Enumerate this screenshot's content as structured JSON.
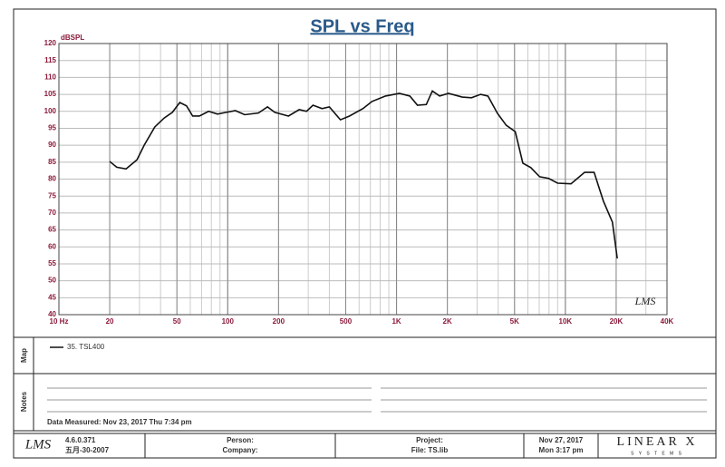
{
  "chart_data": {
    "type": "line",
    "title": "SPL vs Freq",
    "y_label": "dBSPL",
    "watermark": "LMS",
    "x": [
      20,
      22,
      25,
      29,
      32,
      37,
      42,
      47,
      52,
      57,
      62,
      68,
      77,
      87,
      98,
      111,
      126,
      152,
      172,
      190,
      229,
      265,
      293,
      320,
      362,
      400,
      465,
      526,
      633,
      715,
      860,
      1040,
      1200,
      1330,
      1500,
      1630,
      1800,
      2030,
      2450,
      2780,
      3150,
      3480,
      3960,
      4460,
      5050,
      5600,
      6240,
      7040,
      7970,
      9000,
      10800,
      13000,
      14800,
      16800,
      19000,
      20300
    ],
    "series": [
      {
        "name": "35. TSL400",
        "color": "#111111",
        "values": [
          85.2,
          83.5,
          83,
          85.7,
          90,
          95.4,
          98,
          99.7,
          102.6,
          101.6,
          98.6,
          98.6,
          100,
          99.2,
          99.7,
          100.2,
          99,
          99.5,
          101.3,
          99.7,
          98.6,
          100.5,
          100,
          101.8,
          100.8,
          101.3,
          97.5,
          98.6,
          100.8,
          102.9,
          104.5,
          105.3,
          104.5,
          101.8,
          102,
          106,
          104.5,
          105.3,
          104.2,
          104,
          105,
          104.5,
          99.4,
          95.9,
          94,
          84.7,
          83.4,
          80.7,
          80.2,
          78.8,
          78.6,
          82,
          82,
          73.5,
          67.3,
          56.6
        ]
      }
    ],
    "xscale": "log",
    "xlim": [
      10,
      40000
    ],
    "ylim": [
      40,
      120
    ],
    "grid": true,
    "xticks": [
      {
        "value": 10,
        "label": "10 Hz"
      },
      20,
      50,
      100,
      200,
      500,
      {
        "value": 1000,
        "label": "1K"
      },
      {
        "value": 2000,
        "label": "2K"
      },
      {
        "value": 5000,
        "label": "5K"
      },
      {
        "value": 10000,
        "label": "10K"
      },
      {
        "value": 20000,
        "label": "20K"
      },
      {
        "value": 40000,
        "label": "40K"
      }
    ],
    "yticks": [
      40,
      45,
      50,
      55,
      60,
      65,
      70,
      75,
      80,
      85,
      90,
      95,
      100,
      105,
      110,
      115,
      120
    ]
  },
  "map": {
    "label": "Map"
  },
  "notes": {
    "label": "Notes",
    "data_measured": "Data Measured: Nov 23, 2017  Thu  7:34 pm"
  },
  "footer": {
    "logo": "LMS",
    "version": "4.6.0.371",
    "version_date": "五月-30-2007",
    "person": "Person:",
    "company": "Company:",
    "project": "Project:",
    "file": "File: TS.lib",
    "date": "Nov 27, 2017",
    "time": "Mon  3:17 pm",
    "brand": "LINEAR X",
    "brand_sub": "S Y S T E M S"
  }
}
